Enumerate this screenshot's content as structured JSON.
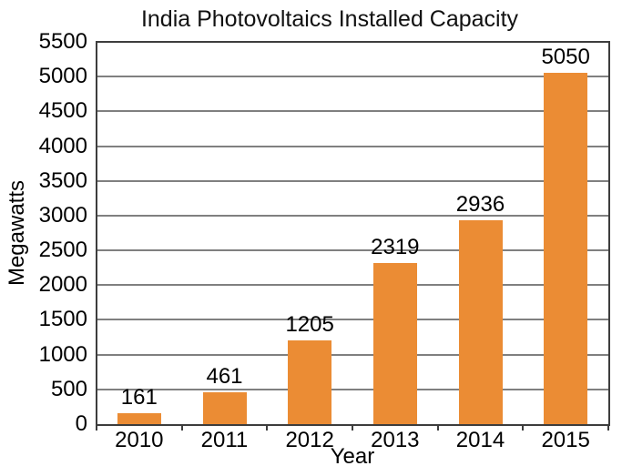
{
  "chart_data": {
    "type": "bar",
    "title": "India Photovoltaics Installed Capacity",
    "xlabel": "Year",
    "ylabel": "Megawatts",
    "categories": [
      "2010",
      "2011",
      "2012",
      "2013",
      "2014",
      "2015"
    ],
    "values": [
      161,
      461,
      1205,
      2319,
      2936,
      5050
    ],
    "bar_labels": [
      "161",
      "461",
      "1205",
      "2319",
      "2936",
      "5050"
    ],
    "ylim": [
      0,
      5500
    ],
    "yticks": [
      0,
      500,
      1000,
      1500,
      2000,
      2500,
      3000,
      3500,
      4000,
      4500,
      5000,
      5500
    ],
    "grid": true,
    "legend_position": "none",
    "colors": {
      "bar": "#EB8C34",
      "grid": "#808080",
      "axis": "#3D3D3D",
      "text": "#000000",
      "background": "#FFFFFF"
    }
  }
}
